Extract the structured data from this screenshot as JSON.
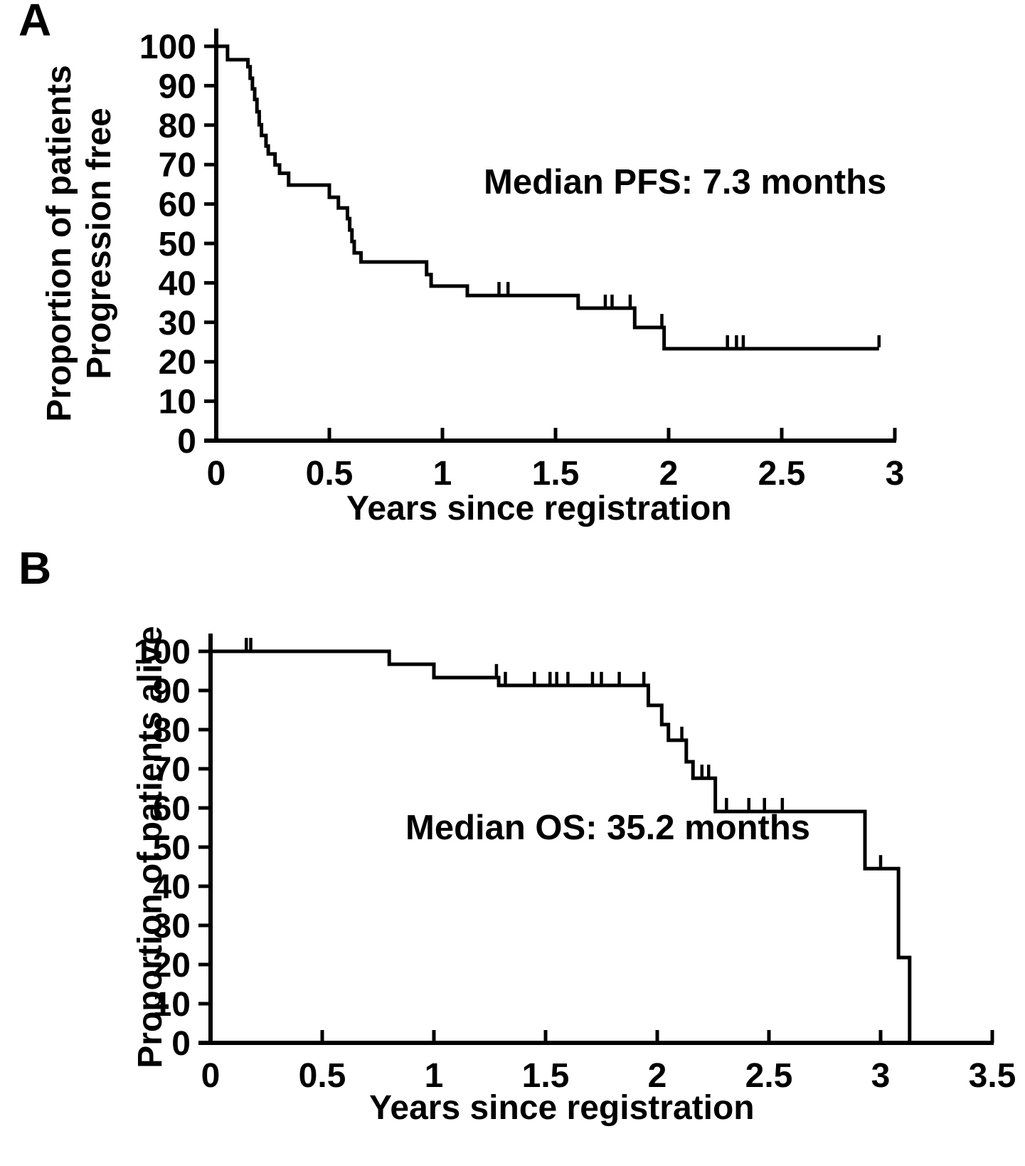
{
  "figure": {
    "background": "#ffffff",
    "ink_color": "#000000",
    "panel_letters": [
      "A",
      "B"
    ]
  },
  "chart_data": [
    {
      "type": "line",
      "subtype": "kaplan_meier_step_curve",
      "panel_label": "A",
      "annotation": "Median PFS: 7.3 months",
      "xlabel": "Years since registration",
      "ylabel_lines": [
        "Proportion of patients",
        "Progression free"
      ],
      "xlim": [
        0,
        3
      ],
      "ylim": [
        0,
        100
      ],
      "grid": false,
      "legend": "none",
      "xticks": [
        0,
        0.5,
        1,
        1.5,
        2,
        2.5,
        3
      ],
      "xtick_labels": [
        "0",
        "0.5",
        "1",
        "1.5",
        "2",
        "2.5",
        "3"
      ],
      "yticks": [
        0,
        10,
        20,
        30,
        40,
        50,
        60,
        70,
        80,
        90,
        100
      ],
      "ytick_labels": [
        "0",
        "10",
        "20",
        "30",
        "40",
        "50",
        "60",
        "70",
        "80",
        "90",
        "100"
      ],
      "start": [
        0,
        100
      ],
      "steps": [
        [
          0.05,
          96.6
        ],
        [
          0.14,
          94.8
        ],
        [
          0.15,
          91.9
        ],
        [
          0.16,
          89.2
        ],
        [
          0.17,
          86.5
        ],
        [
          0.18,
          83.4
        ],
        [
          0.19,
          80.1
        ],
        [
          0.2,
          77.4
        ],
        [
          0.22,
          74.7
        ],
        [
          0.23,
          72.7
        ],
        [
          0.26,
          69.9
        ],
        [
          0.28,
          67.8
        ],
        [
          0.32,
          64.8
        ],
        [
          0.5,
          61.7
        ],
        [
          0.54,
          59.0
        ],
        [
          0.58,
          56.3
        ],
        [
          0.59,
          53.4
        ],
        [
          0.6,
          50.5
        ],
        [
          0.61,
          47.6
        ],
        [
          0.64,
          45.3
        ],
        [
          0.93,
          42.1
        ],
        [
          0.95,
          39.2
        ],
        [
          1.11,
          36.8
        ],
        [
          1.6,
          33.6
        ],
        [
          1.85,
          28.7
        ],
        [
          1.98,
          23.3
        ]
      ],
      "end_time": 2.93,
      "censor_marks": [
        [
          1.25,
          36.8
        ],
        [
          1.29,
          36.8
        ],
        [
          1.72,
          33.6
        ],
        [
          1.75,
          33.6
        ],
        [
          1.83,
          33.6
        ],
        [
          1.97,
          28.7
        ],
        [
          2.26,
          23.3
        ],
        [
          2.3,
          23.3
        ],
        [
          2.33,
          23.3
        ],
        [
          2.93,
          23.3
        ]
      ]
    },
    {
      "type": "line",
      "subtype": "kaplan_meier_step_curve",
      "panel_label": "B",
      "annotation": "Median OS: 35.2 months",
      "xlabel": "Years since registration",
      "ylabel_lines": [
        "Proportion of patients alive"
      ],
      "xlim": [
        0,
        3.5
      ],
      "ylim": [
        0,
        100
      ],
      "grid": false,
      "legend": "none",
      "xticks": [
        0,
        0.5,
        1,
        1.5,
        2,
        2.5,
        3,
        3.5
      ],
      "xtick_labels": [
        "0",
        "0.5",
        "1",
        "1.5",
        "2",
        "2.5",
        "3",
        "3.5"
      ],
      "yticks": [
        0,
        10,
        20,
        30,
        40,
        50,
        60,
        70,
        80,
        90,
        100
      ],
      "ytick_labels": [
        "0",
        "10",
        "20",
        "30",
        "40",
        "50",
        "60",
        "70",
        "80",
        "90",
        "100"
      ],
      "start": [
        0,
        100
      ],
      "steps": [
        [
          0.8,
          96.7
        ],
        [
          1.0,
          93.3
        ],
        [
          1.29,
          91.3
        ],
        [
          1.96,
          86.2
        ],
        [
          2.02,
          81.3
        ],
        [
          2.05,
          77.3
        ],
        [
          2.13,
          71.8
        ],
        [
          2.16,
          67.6
        ],
        [
          2.26,
          59.1
        ],
        [
          2.93,
          44.5
        ],
        [
          3.08,
          21.8
        ],
        [
          3.13,
          0
        ]
      ],
      "end_time": 3.13,
      "censor_marks": [
        [
          0.16,
          100
        ],
        [
          0.18,
          100
        ],
        [
          1.28,
          93.3
        ],
        [
          1.32,
          91.3
        ],
        [
          1.45,
          91.3
        ],
        [
          1.52,
          91.3
        ],
        [
          1.55,
          91.3
        ],
        [
          1.6,
          91.3
        ],
        [
          1.71,
          91.3
        ],
        [
          1.75,
          91.3
        ],
        [
          1.83,
          91.3
        ],
        [
          1.94,
          91.3
        ],
        [
          2.11,
          77.3
        ],
        [
          2.2,
          67.6
        ],
        [
          2.23,
          67.6
        ],
        [
          2.31,
          59.1
        ],
        [
          2.41,
          59.1
        ],
        [
          2.48,
          59.1
        ],
        [
          2.56,
          59.1
        ],
        [
          3.0,
          44.5
        ]
      ]
    }
  ]
}
